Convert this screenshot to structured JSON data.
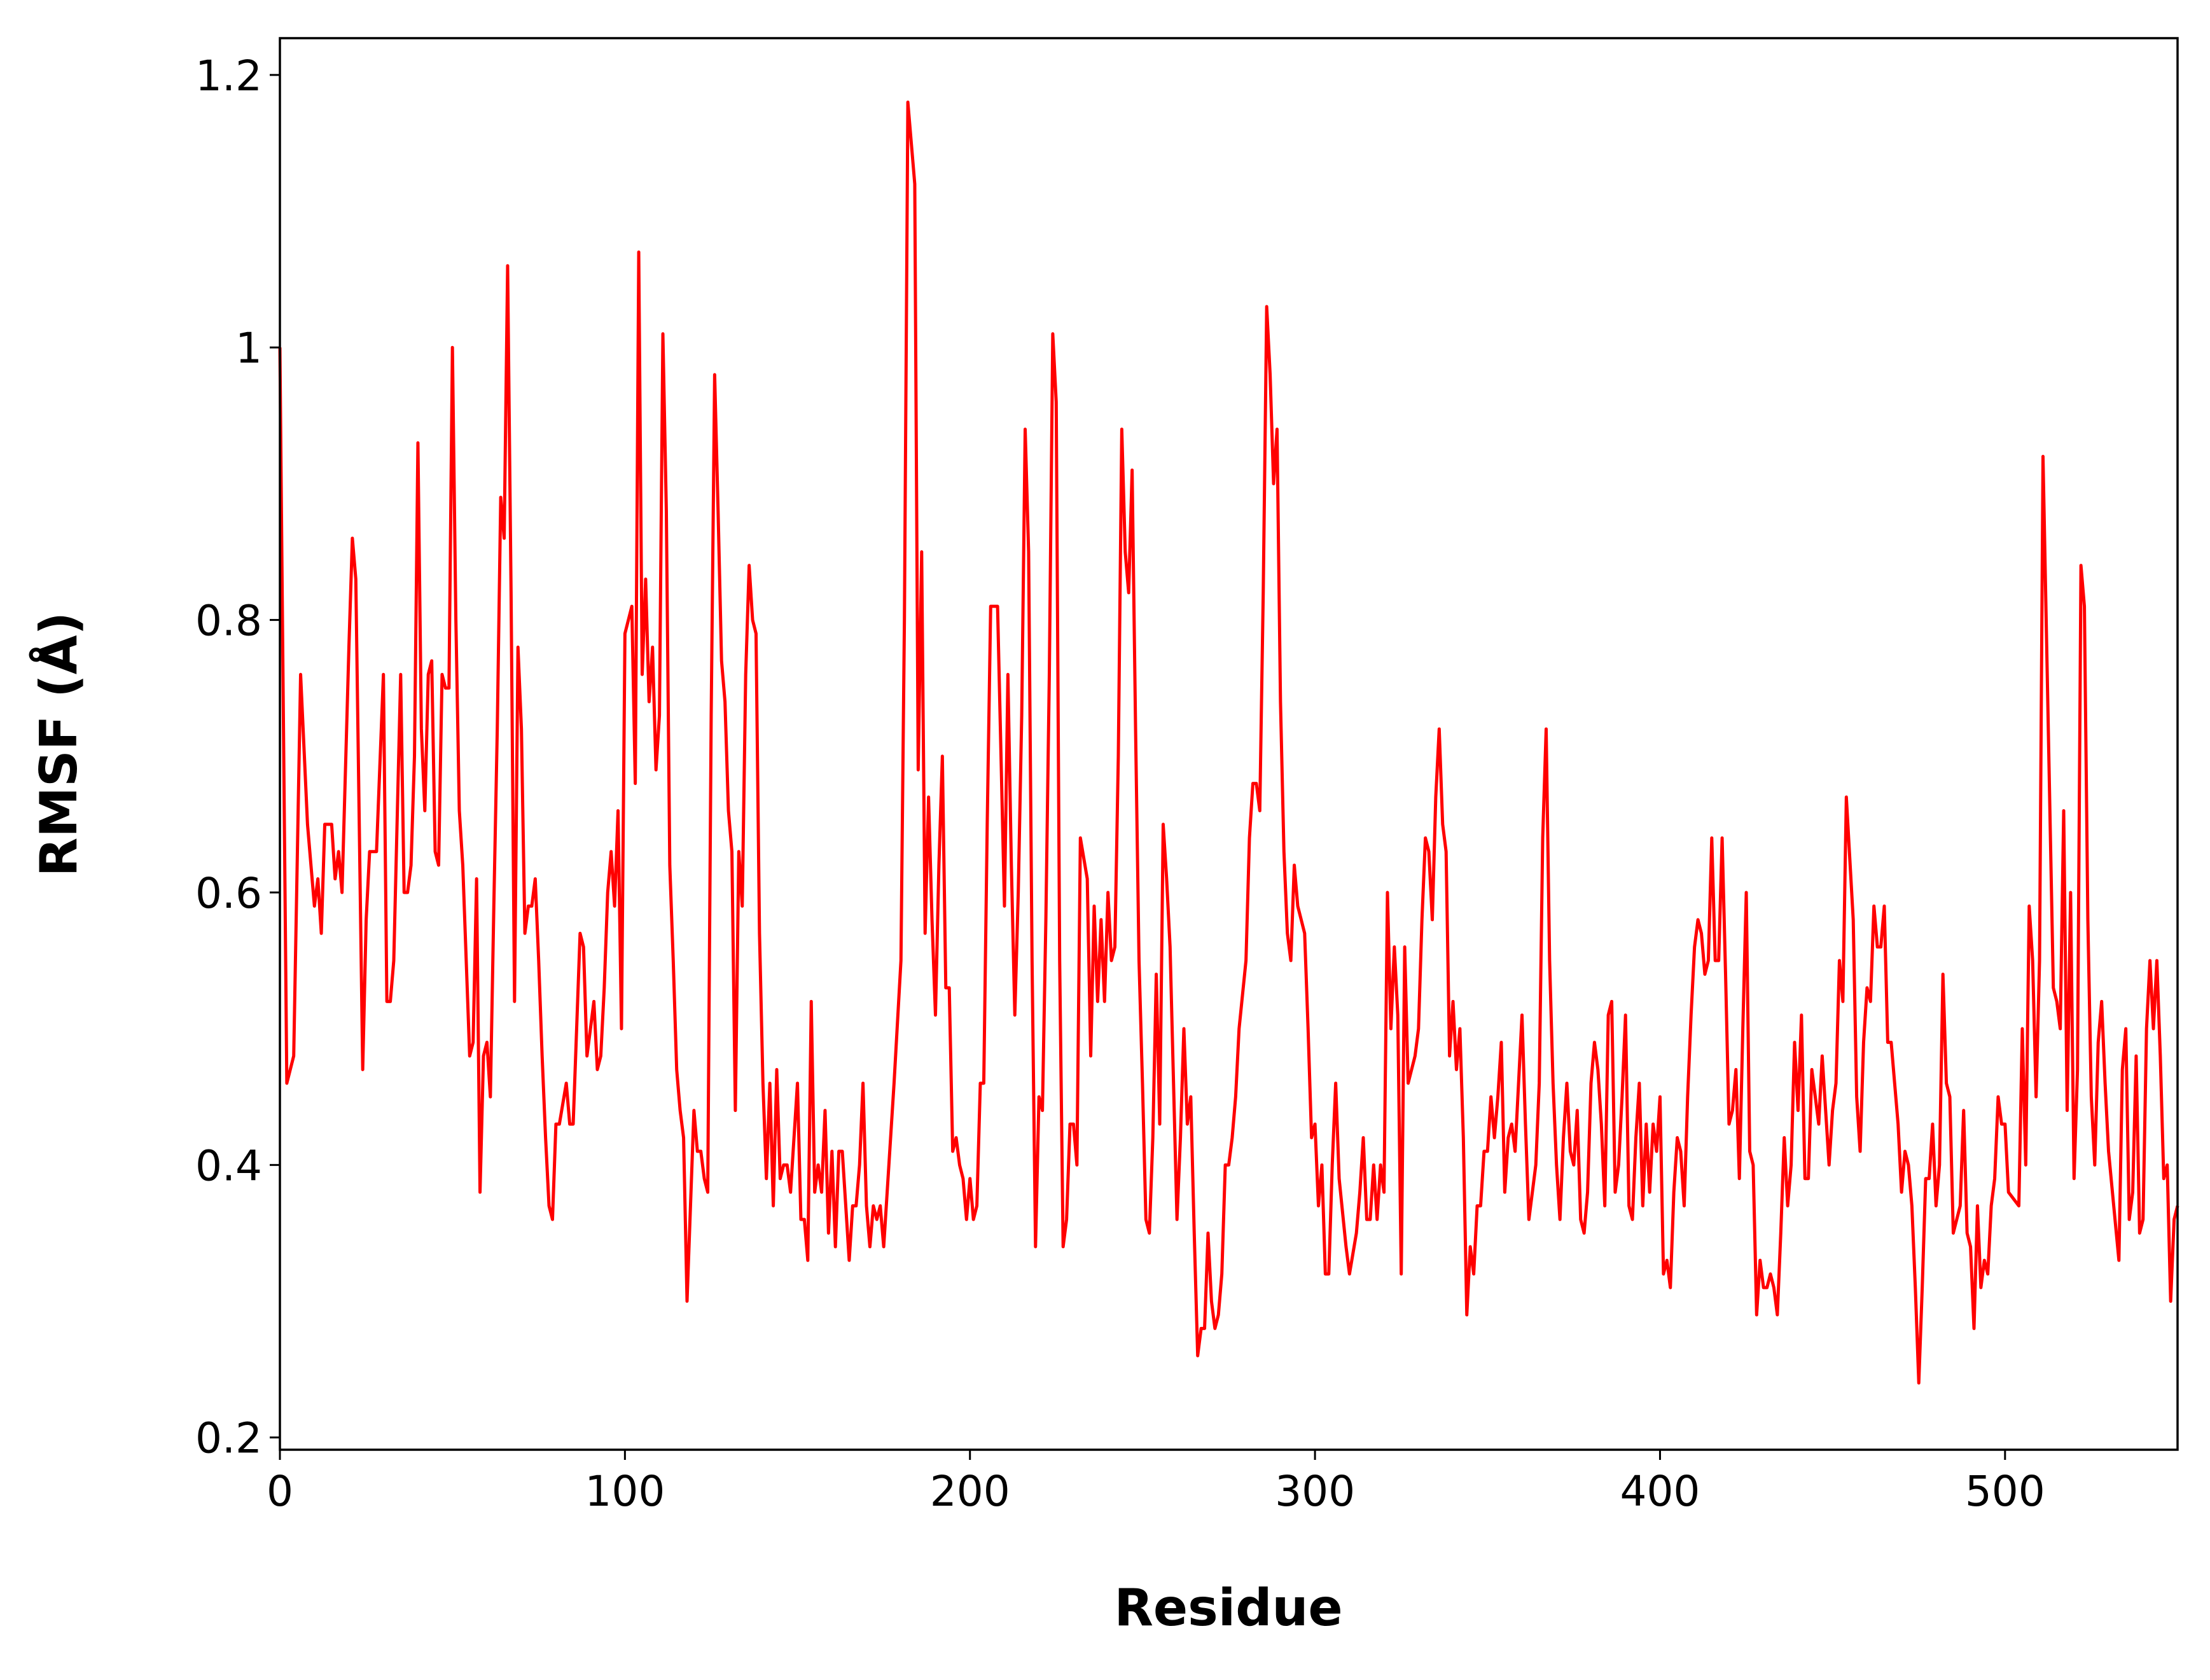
{
  "chart_data": {
    "type": "line",
    "x_label": "Residue",
    "y_label": "RMSF (Å)",
    "xlim": [
      0,
      550
    ],
    "ylim": [
      0.191,
      1.227
    ],
    "xticks": [
      0,
      100,
      200,
      300,
      400,
      500
    ],
    "yticks": [
      0.2,
      0.4,
      0.6,
      0.8,
      1.0,
      1.2
    ],
    "grid": false,
    "series": [
      {
        "color": "#ff0000",
        "x": [
          0,
          2,
          4,
          6,
          8,
          10,
          11,
          12,
          13,
          15,
          16,
          17,
          18,
          20,
          21,
          22,
          24,
          25,
          26,
          28,
          30,
          31,
          32,
          33,
          35,
          36,
          37,
          38,
          39,
          40,
          41,
          42,
          43,
          44,
          45,
          46,
          47,
          48,
          49,
          50,
          51,
          52,
          53,
          55,
          56,
          57,
          58,
          59,
          60,
          61,
          62,
          63,
          64,
          65,
          66,
          67,
          68,
          69,
          70,
          71,
          72,
          73,
          74,
          75,
          76,
          77,
          78,
          79,
          80,
          81,
          83,
          84,
          85,
          87,
          88,
          89,
          90,
          91,
          92,
          93,
          94,
          95,
          96,
          97,
          98,
          99,
          100,
          101,
          102,
          103,
          104,
          105,
          106,
          107,
          108,
          109,
          110,
          111,
          112,
          113,
          114,
          115,
          116,
          117,
          118,
          119,
          120,
          121,
          122,
          123,
          124,
          125,
          126,
          127,
          128,
          129,
          130,
          131,
          132,
          133,
          134,
          135,
          136,
          137,
          138,
          139,
          140,
          141,
          142,
          143,
          144,
          145,
          146,
          147,
          148,
          149,
          150,
          151,
          152,
          153,
          154,
          155,
          156,
          157,
          158,
          159,
          160,
          161,
          162,
          163,
          164,
          165,
          166,
          167,
          168,
          169,
          170,
          171,
          172,
          173,
          174,
          175,
          176,
          178,
          180,
          181,
          182,
          184,
          185,
          186,
          187,
          188,
          189,
          190,
          191,
          192,
          193,
          194,
          195,
          196,
          197,
          198,
          199,
          200,
          201,
          202,
          203,
          204,
          205,
          206,
          208,
          209,
          210,
          211,
          212,
          213,
          214,
          215,
          216,
          217,
          218,
          219,
          220,
          221,
          222,
          223,
          224,
          225,
          226,
          227,
          228,
          229,
          230,
          231,
          232,
          234,
          235,
          236,
          237,
          238,
          239,
          240,
          241,
          242,
          243,
          244,
          245,
          246,
          247,
          248,
          249,
          250,
          251,
          252,
          253,
          254,
          255,
          256,
          257,
          258,
          260,
          261,
          262,
          263,
          264,
          265,
          266,
          267,
          268,
          269,
          270,
          271,
          272,
          273,
          274,
          275,
          276,
          277,
          278,
          280,
          281,
          282,
          283,
          284,
          285,
          286,
          287,
          288,
          289,
          290,
          291,
          292,
          293,
          294,
          295,
          296,
          297,
          298,
          299,
          300,
          301,
          302,
          303,
          304,
          305,
          306,
          307,
          309,
          310,
          312,
          313,
          314,
          315,
          316,
          317,
          318,
          319,
          320,
          321,
          322,
          323,
          324,
          325,
          326,
          327,
          328,
          329,
          330,
          331,
          332,
          333,
          334,
          335,
          336,
          337,
          338,
          339,
          340,
          341,
          342,
          343,
          344,
          345,
          346,
          347,
          348,
          349,
          350,
          351,
          352,
          353,
          354,
          355,
          356,
          357,
          358,
          359,
          360,
          361,
          362,
          363,
          364,
          365,
          366,
          367,
          368,
          369,
          370,
          371,
          372,
          373,
          374,
          375,
          376,
          377,
          378,
          379,
          380,
          381,
          382,
          383,
          384,
          385,
          386,
          387,
          388,
          389,
          390,
          391,
          392,
          393,
          394,
          395,
          396,
          397,
          398,
          399,
          400,
          401,
          402,
          403,
          404,
          405,
          406,
          407,
          408,
          409,
          410,
          411,
          412,
          413,
          414,
          415,
          416,
          417,
          418,
          419,
          420,
          421,
          422,
          423,
          424,
          425,
          426,
          427,
          428,
          429,
          430,
          431,
          432,
          433,
          434,
          435,
          436,
          437,
          438,
          439,
          440,
          441,
          442,
          443,
          444,
          445,
          446,
          447,
          448,
          449,
          450,
          451,
          452,
          453,
          454,
          456,
          457,
          458,
          459,
          460,
          461,
          462,
          463,
          464,
          465,
          466,
          467,
          468,
          469,
          470,
          471,
          472,
          473,
          474,
          475,
          476,
          477,
          478,
          479,
          480,
          481,
          482,
          483,
          484,
          485,
          487,
          488,
          489,
          490,
          491,
          492,
          493,
          494,
          495,
          496,
          497,
          498,
          499,
          500,
          501,
          504,
          505,
          506,
          507,
          508,
          509,
          510,
          511,
          514,
          515,
          516,
          517,
          518,
          519,
          520,
          521,
          522,
          523,
          524,
          525,
          526,
          527,
          528,
          529,
          530,
          533,
          534,
          535,
          536,
          537,
          538,
          539,
          540,
          541,
          542,
          543,
          544,
          545,
          546,
          547,
          548,
          549,
          550
        ],
        "values": [
          1.0,
          0.46,
          0.48,
          0.76,
          0.65,
          0.59,
          0.61,
          0.57,
          0.65,
          0.65,
          0.61,
          0.63,
          0.6,
          0.78,
          0.86,
          0.83,
          0.47,
          0.58,
          0.63,
          0.63,
          0.76,
          0.52,
          0.52,
          0.55,
          0.76,
          0.6,
          0.6,
          0.62,
          0.7,
          0.93,
          0.72,
          0.66,
          0.76,
          0.77,
          0.63,
          0.62,
          0.76,
          0.75,
          0.75,
          1.0,
          0.8,
          0.66,
          0.62,
          0.48,
          0.49,
          0.61,
          0.38,
          0.48,
          0.49,
          0.45,
          0.59,
          0.72,
          0.89,
          0.86,
          1.06,
          0.82,
          0.52,
          0.78,
          0.72,
          0.57,
          0.59,
          0.59,
          0.61,
          0.55,
          0.48,
          0.42,
          0.37,
          0.36,
          0.43,
          0.43,
          0.46,
          0.43,
          0.43,
          0.57,
          0.56,
          0.48,
          0.5,
          0.52,
          0.47,
          0.48,
          0.53,
          0.6,
          0.63,
          0.59,
          0.66,
          0.5,
          0.79,
          0.8,
          0.81,
          0.68,
          1.07,
          0.76,
          0.83,
          0.74,
          0.78,
          0.69,
          0.73,
          1.01,
          0.88,
          0.62,
          0.55,
          0.47,
          0.44,
          0.42,
          0.3,
          0.37,
          0.44,
          0.41,
          0.41,
          0.39,
          0.38,
          0.73,
          0.98,
          0.88,
          0.77,
          0.74,
          0.66,
          0.63,
          0.44,
          0.63,
          0.59,
          0.76,
          0.84,
          0.8,
          0.79,
          0.57,
          0.46,
          0.39,
          0.46,
          0.37,
          0.47,
          0.39,
          0.4,
          0.4,
          0.38,
          0.42,
          0.46,
          0.36,
          0.36,
          0.33,
          0.52,
          0.38,
          0.4,
          0.38,
          0.44,
          0.35,
          0.41,
          0.34,
          0.41,
          0.41,
          0.37,
          0.33,
          0.37,
          0.37,
          0.4,
          0.46,
          0.37,
          0.34,
          0.37,
          0.36,
          0.37,
          0.34,
          0.38,
          0.46,
          0.55,
          0.8,
          1.18,
          1.12,
          0.69,
          0.85,
          0.57,
          0.67,
          0.58,
          0.51,
          0.62,
          0.7,
          0.53,
          0.53,
          0.41,
          0.42,
          0.4,
          0.39,
          0.36,
          0.39,
          0.36,
          0.37,
          0.46,
          0.46,
          0.65,
          0.81,
          0.81,
          0.7,
          0.59,
          0.76,
          0.62,
          0.51,
          0.6,
          0.73,
          0.94,
          0.85,
          0.55,
          0.34,
          0.45,
          0.44,
          0.58,
          0.76,
          1.01,
          0.96,
          0.55,
          0.34,
          0.36,
          0.43,
          0.43,
          0.4,
          0.64,
          0.61,
          0.48,
          0.59,
          0.52,
          0.58,
          0.52,
          0.6,
          0.55,
          0.56,
          0.7,
          0.94,
          0.85,
          0.82,
          0.91,
          0.72,
          0.55,
          0.46,
          0.36,
          0.35,
          0.42,
          0.54,
          0.43,
          0.65,
          0.61,
          0.56,
          0.36,
          0.42,
          0.5,
          0.43,
          0.45,
          0.35,
          0.26,
          0.28,
          0.28,
          0.35,
          0.3,
          0.28,
          0.29,
          0.32,
          0.4,
          0.4,
          0.42,
          0.45,
          0.5,
          0.55,
          0.64,
          0.68,
          0.68,
          0.66,
          0.82,
          1.03,
          0.98,
          0.9,
          0.94,
          0.74,
          0.63,
          0.57,
          0.55,
          0.62,
          0.59,
          0.58,
          0.57,
          0.5,
          0.42,
          0.43,
          0.37,
          0.4,
          0.32,
          0.32,
          0.4,
          0.46,
          0.39,
          0.34,
          0.32,
          0.35,
          0.38,
          0.42,
          0.36,
          0.36,
          0.4,
          0.36,
          0.4,
          0.38,
          0.6,
          0.5,
          0.56,
          0.51,
          0.32,
          0.56,
          0.46,
          0.47,
          0.48,
          0.5,
          0.58,
          0.64,
          0.63,
          0.58,
          0.67,
          0.72,
          0.65,
          0.63,
          0.48,
          0.52,
          0.47,
          0.5,
          0.42,
          0.29,
          0.34,
          0.32,
          0.37,
          0.37,
          0.41,
          0.41,
          0.45,
          0.42,
          0.45,
          0.49,
          0.38,
          0.42,
          0.43,
          0.41,
          0.46,
          0.51,
          0.43,
          0.36,
          0.38,
          0.4,
          0.46,
          0.64,
          0.72,
          0.55,
          0.46,
          0.4,
          0.36,
          0.42,
          0.46,
          0.41,
          0.4,
          0.44,
          0.36,
          0.35,
          0.38,
          0.46,
          0.49,
          0.47,
          0.43,
          0.37,
          0.51,
          0.52,
          0.38,
          0.4,
          0.45,
          0.51,
          0.37,
          0.36,
          0.42,
          0.46,
          0.37,
          0.43,
          0.38,
          0.43,
          0.41,
          0.45,
          0.32,
          0.33,
          0.31,
          0.38,
          0.42,
          0.41,
          0.37,
          0.45,
          0.51,
          0.56,
          0.58,
          0.57,
          0.54,
          0.55,
          0.64,
          0.55,
          0.55,
          0.64,
          0.54,
          0.43,
          0.44,
          0.47,
          0.39,
          0.5,
          0.6,
          0.41,
          0.4,
          0.29,
          0.33,
          0.31,
          0.31,
          0.32,
          0.31,
          0.29,
          0.35,
          0.42,
          0.37,
          0.4,
          0.49,
          0.44,
          0.51,
          0.39,
          0.39,
          0.47,
          0.45,
          0.43,
          0.48,
          0.44,
          0.4,
          0.44,
          0.46,
          0.55,
          0.52,
          0.67,
          0.58,
          0.45,
          0.41,
          0.49,
          0.53,
          0.52,
          0.59,
          0.56,
          0.56,
          0.59,
          0.49,
          0.49,
          0.46,
          0.43,
          0.38,
          0.41,
          0.4,
          0.37,
          0.31,
          0.24,
          0.31,
          0.39,
          0.39,
          0.43,
          0.37,
          0.4,
          0.54,
          0.46,
          0.45,
          0.35,
          0.37,
          0.44,
          0.35,
          0.34,
          0.28,
          0.37,
          0.31,
          0.33,
          0.32,
          0.37,
          0.39,
          0.45,
          0.43,
          0.43,
          0.38,
          0.37,
          0.5,
          0.4,
          0.59,
          0.55,
          0.45,
          0.55,
          0.92,
          0.53,
          0.52,
          0.5,
          0.66,
          0.44,
          0.6,
          0.39,
          0.47,
          0.84,
          0.81,
          0.58,
          0.45,
          0.4,
          0.49,
          0.52,
          0.46,
          0.41,
          0.33,
          0.47,
          0.5,
          0.36,
          0.38,
          0.48,
          0.35,
          0.36,
          0.5,
          0.55,
          0.5,
          0.55,
          0.48,
          0.39,
          0.4,
          0.3,
          0.36,
          0.37
        ]
      }
    ]
  }
}
